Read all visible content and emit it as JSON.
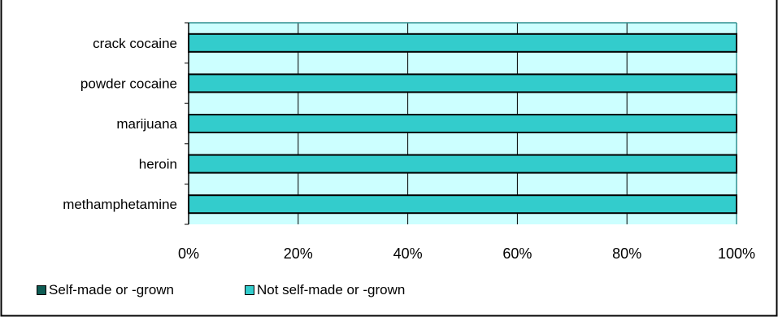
{
  "colors": {
    "self_made": "#0e5c54",
    "not_self_made": "#33cccc",
    "plot_background": "#ccffff",
    "frame": "#000000"
  },
  "chart_data": {
    "type": "bar",
    "orientation": "horizontal",
    "stacked": true,
    "percent_stacked": true,
    "categories": [
      "crack cocaine",
      "powder cocaine",
      "marijuana",
      "heroin",
      "methamphetamine"
    ],
    "series": [
      {
        "name": "Self-made or -grown",
        "values": [
          0,
          0,
          0,
          0,
          0
        ]
      },
      {
        "name": "Not self-made or -grown",
        "values": [
          100,
          100,
          100,
          100,
          100
        ]
      }
    ],
    "xlim": [
      0,
      100
    ],
    "x_ticks": [
      "0%",
      "20%",
      "40%",
      "60%",
      "80%",
      "100%"
    ],
    "grid": true,
    "legend_position": "bottom-left",
    "title": "",
    "xlabel": "",
    "ylabel": ""
  }
}
